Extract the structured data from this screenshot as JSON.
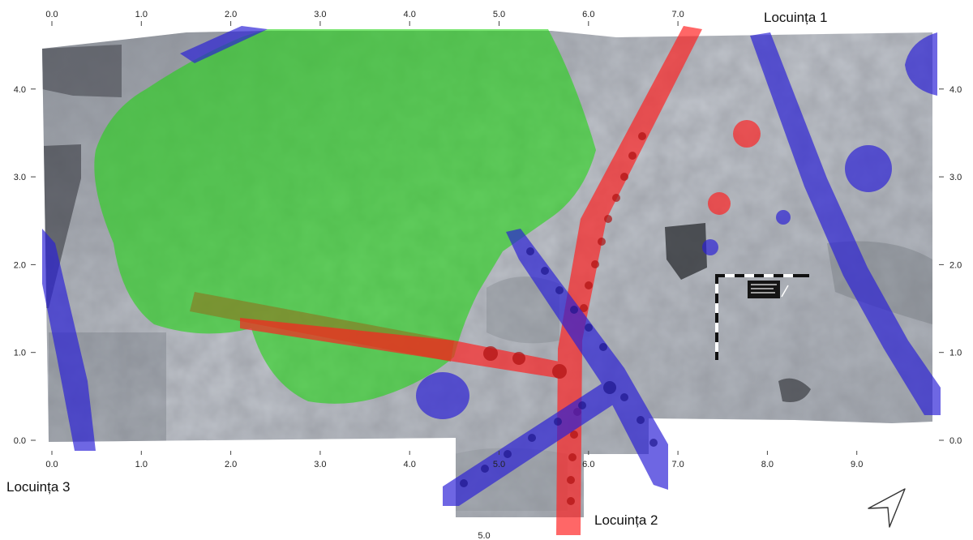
{
  "plan": {
    "x_axis_top": [
      "0.0",
      "1.0",
      "2.0",
      "3.0",
      "4.0",
      "5.0",
      "6.0",
      "7.0"
    ],
    "x_axis_bottom": [
      "0.0",
      "1.0",
      "2.0",
      "3.0",
      "4.0",
      "5.0",
      "6.0",
      "7.0",
      "8.0",
      "9.0"
    ],
    "x_axis_bottom_extra": "5.0",
    "y_axis_left": [
      "0.0",
      "1.0",
      "2.0",
      "3.0",
      "4.0"
    ],
    "y_axis_right": [
      "0.0",
      "1.0",
      "2.0",
      "3.0",
      "4.0"
    ],
    "scale_plate_text": [
      "MĂ 1 / 2",
      "CARTIER",
      "HVNOL",
      "TIS. MAIONIA",
      "ARLE",
      "20..."
    ]
  },
  "annotations": {
    "dwelling_1": "Locuința 1",
    "dwelling_2": "Locuința 2",
    "dwelling_3": "Locuința 3"
  },
  "colors": {
    "soil_dark": "#4a4c52",
    "soil_light": "#b8bcc4",
    "green_overlay": "#22d414",
    "red_overlay": "#ff1f1f",
    "blue_overlay": "#2a1fd6",
    "olive_overlay": "#8a7a20"
  },
  "icons": {
    "north_arrow": "navigation-arrow-icon"
  }
}
